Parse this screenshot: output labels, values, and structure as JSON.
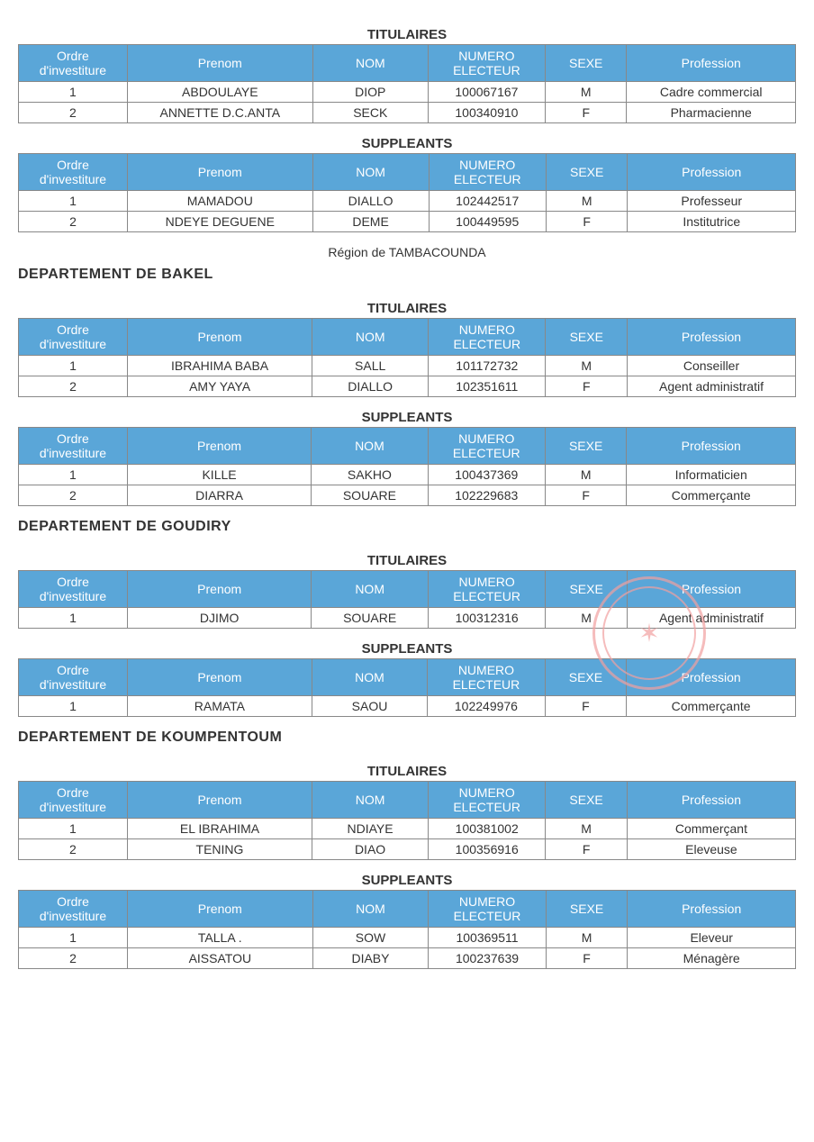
{
  "style": {
    "header_bg": "#5aa6d8",
    "header_text": "#ffffff",
    "border_color": "#888888",
    "cell_bg": "#ffffff",
    "body_text": "#333333",
    "stamp_color": "#f2a0a0",
    "font_family": "Arial",
    "title_fontsize": 15,
    "cell_fontsize": 14,
    "dept_fontsize": 16
  },
  "columns": {
    "ordre": "Ordre d'investiture",
    "prenom": "Prenom",
    "nom": "NOM",
    "numero": "NUMERO ELECTEUR",
    "sexe": "SEXE",
    "profession": "Profession"
  },
  "labels": {
    "titulaires": "TITULAIRES",
    "suppleants": "SUPPLEANTS",
    "region": "Région de TAMBACOUNDA"
  },
  "blocks": [
    {
      "dept": null,
      "titulaires": [
        {
          "ordre": "1",
          "prenom": "ABDOULAYE",
          "nom": "DIOP",
          "numero": "100067167",
          "sexe": "M",
          "profession": "Cadre commercial"
        },
        {
          "ordre": "2",
          "prenom": "ANNETTE D.C.ANTA",
          "nom": "SECK",
          "numero": "100340910",
          "sexe": "F",
          "profession": "Pharmacienne"
        }
      ],
      "suppleants": [
        {
          "ordre": "1",
          "prenom": "MAMADOU",
          "nom": "DIALLO",
          "numero": "102442517",
          "sexe": "M",
          "profession": "Professeur"
        },
        {
          "ordre": "2",
          "prenom": "NDEYE DEGUENE",
          "nom": "DEME",
          "numero": "100449595",
          "sexe": "F",
          "profession": "Institutrice"
        }
      ],
      "region_after": true
    },
    {
      "dept": "DEPARTEMENT  DE BAKEL",
      "titulaires": [
        {
          "ordre": "1",
          "prenom": "IBRAHIMA BABA",
          "nom": "SALL",
          "numero": "101172732",
          "sexe": "M",
          "profession": "Conseiller"
        },
        {
          "ordre": "2",
          "prenom": "AMY YAYA",
          "nom": "DIALLO",
          "numero": "102351611",
          "sexe": "F",
          "profession": "Agent administratif"
        }
      ],
      "suppleants": [
        {
          "ordre": "1",
          "prenom": "KILLE",
          "nom": "SAKHO",
          "numero": "100437369",
          "sexe": "M",
          "profession": "Informaticien"
        },
        {
          "ordre": "2",
          "prenom": "DIARRA",
          "nom": "SOUARE",
          "numero": "102229683",
          "sexe": "F",
          "profession": "Commerçante"
        }
      ]
    },
    {
      "dept": "DEPARTEMENT  DE GOUDIRY",
      "titulaires": [
        {
          "ordre": "1",
          "prenom": "DJIMO",
          "nom": "SOUARE",
          "numero": "100312316",
          "sexe": "M",
          "profession": "Agent administratif"
        }
      ],
      "suppleants": [
        {
          "ordre": "1",
          "prenom": "RAMATA",
          "nom": "SAOU",
          "numero": "102249976",
          "sexe": "F",
          "profession": "Commerçante"
        }
      ]
    },
    {
      "dept": "DEPARTEMENT  DE KOUMPENTOUM",
      "titulaires": [
        {
          "ordre": "1",
          "prenom": "EL IBRAHIMA",
          "nom": "NDIAYE",
          "numero": "100381002",
          "sexe": "M",
          "profession": "Commerçant"
        },
        {
          "ordre": "2",
          "prenom": "TENING",
          "nom": "DIAO",
          "numero": "100356916",
          "sexe": "F",
          "profession": "Eleveuse"
        }
      ],
      "suppleants": [
        {
          "ordre": "1",
          "prenom": "TALLA .",
          "nom": "SOW",
          "numero": "100369511",
          "sexe": "M",
          "profession": "Eleveur"
        },
        {
          "ordre": "2",
          "prenom": "AISSATOU",
          "nom": "DIABY",
          "numero": "100237639",
          "sexe": "F",
          "profession": "Ménagère"
        }
      ]
    }
  ]
}
